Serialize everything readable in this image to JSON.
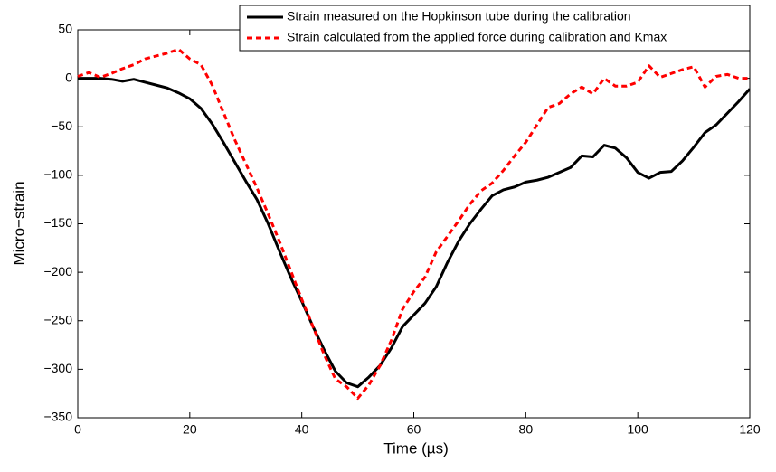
{
  "chart_data": {
    "type": "line",
    "xlabel": "Time (µs)",
    "ylabel": "Micro−strain",
    "x": [
      0,
      2,
      4,
      6,
      8,
      10,
      12,
      14,
      16,
      18,
      20,
      22,
      24,
      26,
      28,
      30,
      32,
      34,
      36,
      38,
      40,
      42,
      44,
      46,
      48,
      50,
      52,
      54,
      56,
      58,
      60,
      62,
      64,
      66,
      68,
      70,
      72,
      74,
      76,
      78,
      80,
      82,
      84,
      86,
      88,
      90,
      92,
      94,
      96,
      98,
      100,
      102,
      104,
      106,
      108,
      110,
      112,
      114,
      116,
      118,
      120
    ],
    "series": [
      {
        "name": "Strain measured on the Hopkinson tube during the calibration",
        "color": "#000000",
        "linestyle": "solid",
        "values": [
          0,
          0,
          0,
          -1,
          -3,
          -1,
          -4,
          -7,
          -10,
          -15,
          -21,
          -31,
          -47,
          -66,
          -86,
          -106,
          -125,
          -150,
          -178,
          -205,
          -230,
          -256,
          -280,
          -302,
          -314,
          -318,
          -308,
          -296,
          -278,
          -256,
          -244,
          -232,
          -215,
          -190,
          -168,
          -150,
          -135,
          -121,
          -115,
          -112,
          -107,
          -105,
          -102,
          -97,
          -92,
          -80,
          -81,
          -69,
          -72,
          -82,
          -97,
          -103,
          -97,
          -96,
          -85,
          -71,
          -56,
          -48,
          -36,
          -24,
          -11
        ]
      },
      {
        "name": "Strain calculated from the applied force during calibration and Kmax",
        "color": "#ff0000",
        "linestyle": "dashed",
        "values": [
          2,
          6,
          1,
          5,
          10,
          14,
          20,
          23,
          26,
          30,
          20,
          14,
          -7,
          -35,
          -63,
          -88,
          -113,
          -140,
          -168,
          -198,
          -228,
          -256,
          -285,
          -310,
          -318,
          -330,
          -316,
          -296,
          -270,
          -238,
          -220,
          -205,
          -179,
          -163,
          -147,
          -130,
          -116,
          -108,
          -95,
          -80,
          -66,
          -48,
          -30,
          -26,
          -16,
          -9,
          -16,
          0,
          -8,
          -8,
          -4,
          13,
          1,
          5,
          9,
          12,
          -9,
          2,
          4,
          0,
          0
        ]
      }
    ],
    "xlim": [
      0,
      120
    ],
    "xticks": [
      0,
      20,
      40,
      60,
      80,
      100,
      120
    ],
    "ylim": [
      -350,
      50
    ],
    "yticks": [
      {
        "value": -350,
        "label": "−350"
      },
      {
        "value": -300,
        "label": "−300"
      },
      {
        "value": -250,
        "label": "−250"
      },
      {
        "value": -200,
        "label": "−200"
      },
      {
        "value": -150,
        "label": "−150"
      },
      {
        "value": -100,
        "label": "−100"
      },
      {
        "value": -50,
        "label": "−50"
      },
      0,
      50
    ],
    "grid": false,
    "legend": "upper right"
  }
}
